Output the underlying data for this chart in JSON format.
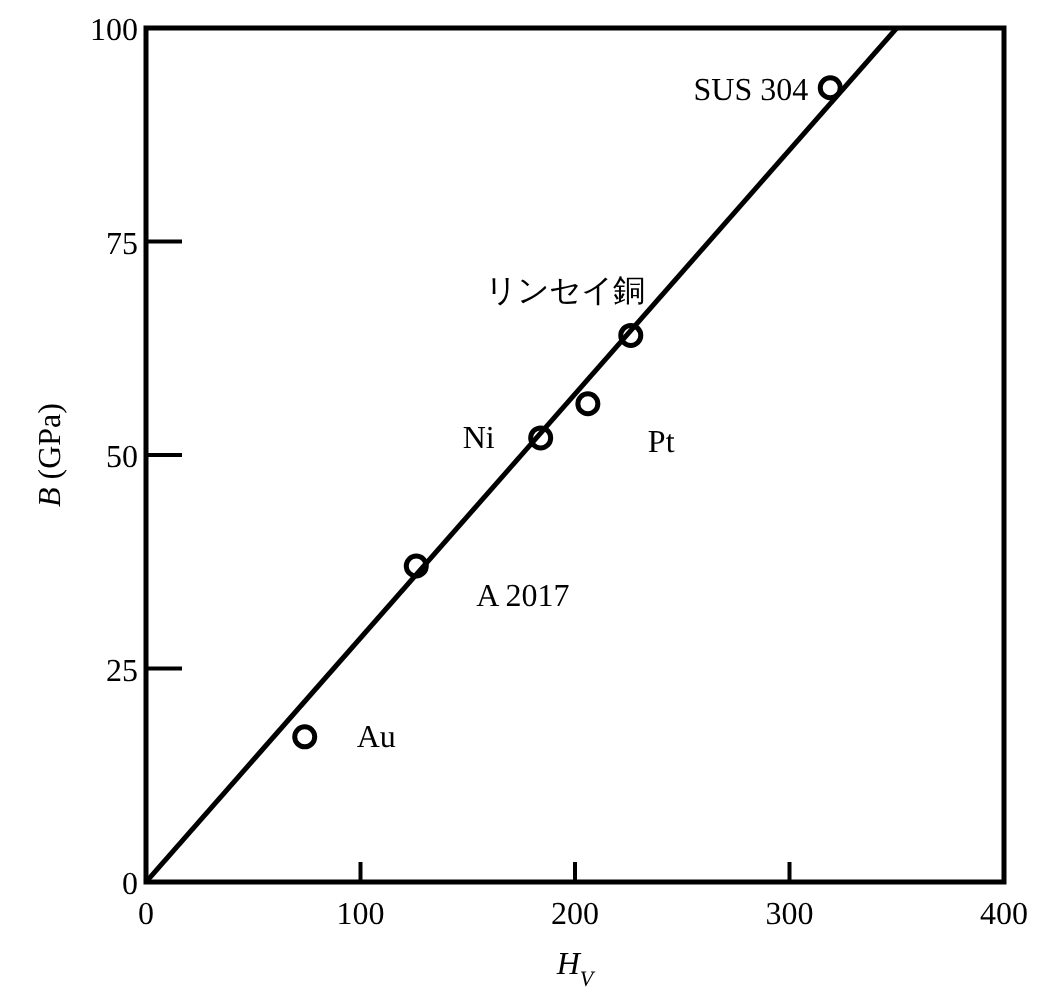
{
  "chart_data": {
    "type": "scatter",
    "xlabel": "*H*$_{V}$",
    "ylabel": "*B* (GPa)",
    "series": [
      {
        "color": "#000000",
        "marker": "circle",
        "x": [
          74,
          126,
          184,
          206,
          226,
          319
        ],
        "values": [
          17,
          37,
          52,
          56,
          64,
          93
        ]
      },
      {
        "type": "line",
        "color": "#000000",
        "line_style": "solid",
        "marker": "none",
        "x": [
          0,
          350
        ],
        "values": [
          0,
          100
        ]
      }
    ],
    "annotations": [
      {
        "text": "Au",
        "x": 74,
        "y": 17
      },
      {
        "text": "A 2017",
        "x": 126,
        "y": 37
      },
      {
        "text": "Ni",
        "x": 184,
        "y": 52
      },
      {
        "text": "Pt",
        "x": 206,
        "y": 56
      },
      {
        "text": "リンセイ銅",
        "x": 226,
        "y": 64
      },
      {
        "text": "SUS 304",
        "x": 319,
        "y": 93
      }
    ],
    "xlim": [
      0,
      400
    ],
    "ylim": [
      0,
      100
    ],
    "xticks": [
      0,
      100,
      200,
      300,
      400
    ],
    "yticks": [
      0,
      25,
      50,
      75,
      100
    ],
    "grid": false
  }
}
